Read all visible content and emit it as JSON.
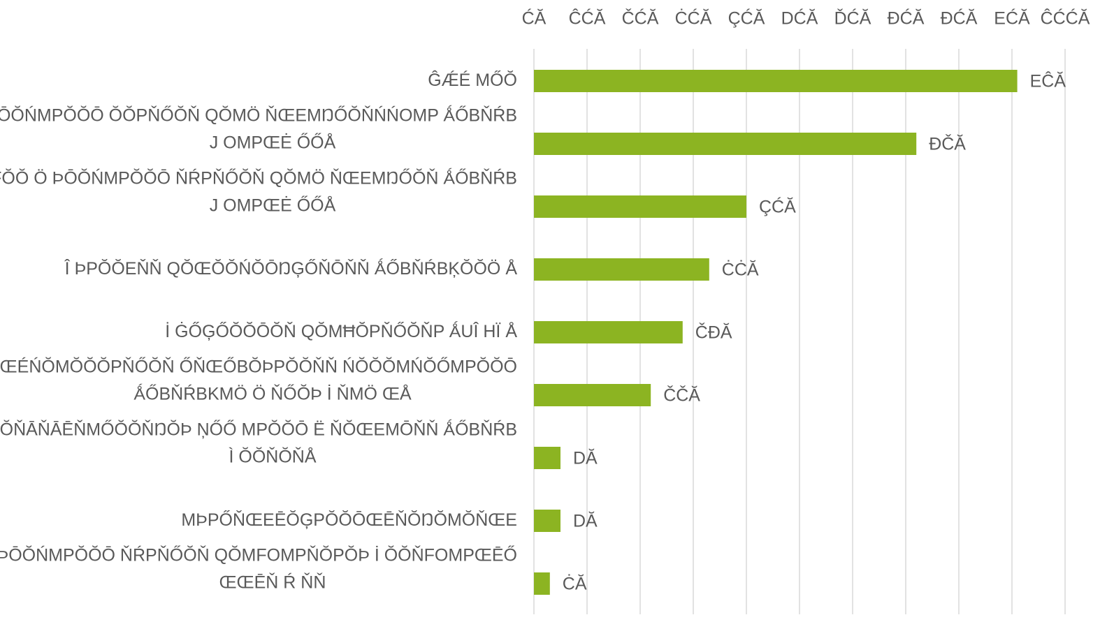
{
  "chart_data": {
    "type": "barh",
    "categories": [
      "ĜǼÉ MŐŎ",
      "FŎŎ Ö ÞŌŎŃMPŎŎŌ ŎŎPŇŐŎŇ QŎMÖ ŇŒEMŊŐŎŇŃŃOMP ǺŐBŇŔB\nJ OMPŒĖ ŐŐÅ",
      "FŎŎ Ö ÞŌŎŃMPŎŎŌ ŇŔPŇŐŎŇ QŎMÖ ŇŒEMŊŐŎŇ ǺŐBŇŔB\nJ OMPŒĖ ŐŐÅ",
      "Î ÞPŎŎEŇŇ QŎŒŎŎŃŎŌŊĢŐŇŌŇŇ ǺŐBŇŔBĶŎŎÖ Å",
      "İ ĠŐĢŐŎŎŌŎŇ QŎMĦŎPŇŐŎŇP ǺUÎ HÏ Å",
      "Ī ĠŒŇMÞ ŒÉŃŎMŎŎŎPŇŐŎŇ ŐŇŒŐBŎÞPŎŎŇŇ ŃŎŎŎMŃŎŐMPŎŎŌ\nǺŐBŇŔBKMÖ Ö ŇŐŎÞ İ ŇMÖ ŒÅ",
      "Î ÞPŎŎŇĀŇĀĒŇMŐŎŎŇŊŎÞ ŅŐŐ MPŎŎŌ Ë ŇŎŒEMŌŇŇ ǺŐBŇŔB\nÌ ŎŎŇŎŇÅ",
      "MÞPŐŇŒEĒŎĢPŎŎŌŒĒŇŎŊŎMŎŇŒE",
      "FŎŎ Ö ÞŌŎŃMPŎŎŌ ŇŔPŇŐŎŇ QŎMFOMPŇŎPŎÞ İ ŎŎŇFOMPŒĒŐ\nŒŒĒŇ Ŕ ŇŇ"
    ],
    "values": [
      91,
      72,
      40,
      33,
      28,
      22,
      5,
      5,
      3
    ],
    "value_labels": [
      "EĈĂ",
      "ĐČĂ",
      "ÇĆĂ",
      "ĊĊĂ",
      "ČĐĂ",
      "ČČĂ",
      "DĂ",
      "DĂ",
      "ĊĂ"
    ],
    "color": "#8cb422",
    "xlim": [
      0,
      100
    ],
    "xticks": [
      {
        "value": 0,
        "label": "ĆĂ"
      },
      {
        "value": 10,
        "label": "ĈĆĂ"
      },
      {
        "value": 20,
        "label": "ČĆĂ"
      },
      {
        "value": 30,
        "label": "ĊĆĂ"
      },
      {
        "value": 40,
        "label": "ÇĆĂ"
      },
      {
        "value": 50,
        "label": "DĆĂ"
      },
      {
        "value": 60,
        "label": "ĎĆĂ"
      },
      {
        "value": 70,
        "label": "ĐĆĂ"
      },
      {
        "value": 80,
        "label": "ĐĆĂ"
      },
      {
        "value": 90,
        "label": "EĆĂ"
      },
      {
        "value": 100,
        "label": "ĈĆĆĂ"
      }
    ],
    "grid": true
  }
}
